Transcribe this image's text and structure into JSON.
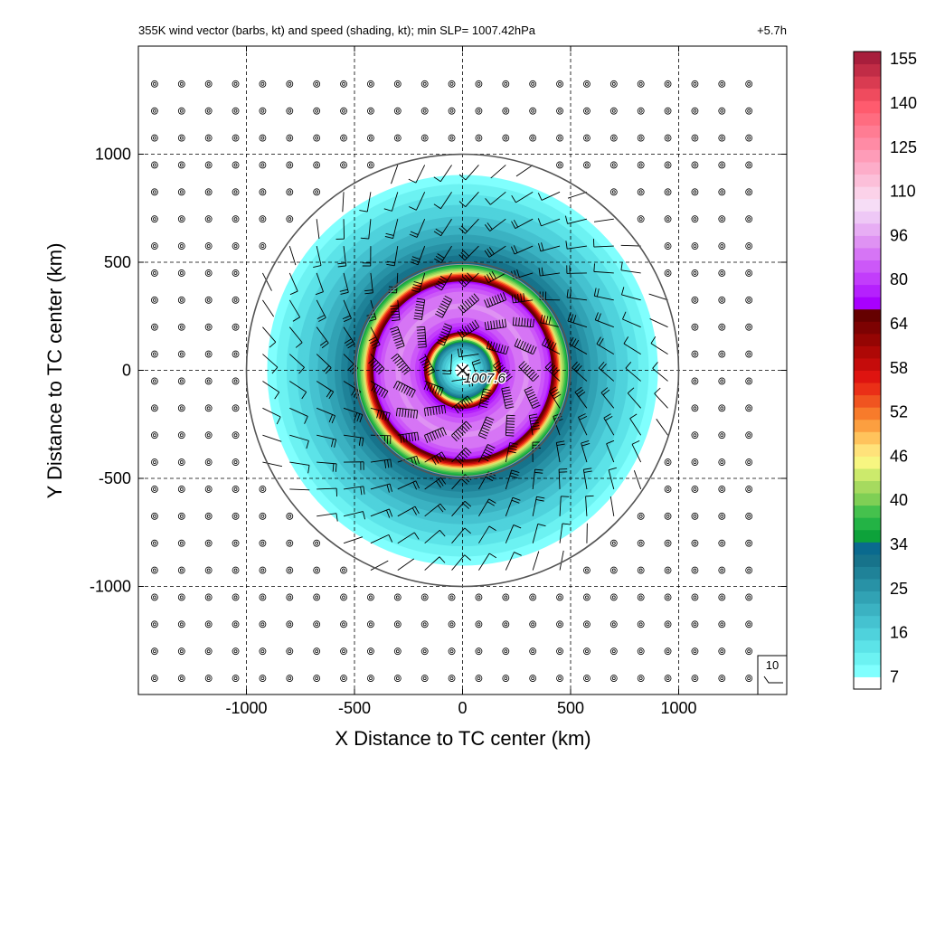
{
  "chart_data": {
    "type": "heatmap",
    "title": "355K wind vector (barbs, kt) and speed (shading, kt); min SLP= 1007.42hPa",
    "time_label": "+5.7h",
    "xlabel": "X Distance to TC center (km)",
    "ylabel": "Y Distance to TC center (km)",
    "xlim": [
      -1500,
      1500
    ],
    "ylim": [
      -1500,
      1500
    ],
    "xticks": [
      -1000,
      -500,
      0,
      500,
      1000
    ],
    "yticks": [
      -1000,
      -500,
      0,
      500,
      1000
    ],
    "xtick_labels": [
      "-1000",
      "-500",
      "0",
      "500",
      "1000"
    ],
    "ytick_labels": [
      "-1000",
      "-500",
      "0",
      "500",
      "1000"
    ],
    "grid": "dashed",
    "center_marker": "x",
    "center_label": "1007.6",
    "range_rings_km": [
      500,
      1000
    ],
    "barb_reference_label": "10",
    "colorbar": {
      "labels": [
        "7",
        "16",
        "25",
        "34",
        "40",
        "46",
        "52",
        "58",
        "64",
        "80",
        "96",
        "110",
        "125",
        "140",
        "155"
      ],
      "levels": [
        7,
        16,
        25,
        34,
        40,
        46,
        52,
        58,
        64,
        80,
        96,
        110,
        125,
        140,
        155
      ],
      "colors": [
        "#ffffff",
        "#80fffe",
        "#6cf2f2",
        "#5ce3e8",
        "#4fd2dc",
        "#45c2d0",
        "#3bb2c2",
        "#31a2b4",
        "#2892a6",
        "#1f8298",
        "#17738b",
        "#0a6a8e",
        "#0da23a",
        "#23b345",
        "#45c14d",
        "#7fcf55",
        "#a6da5f",
        "#ccea6c",
        "#f7f681",
        "#ffe27a",
        "#ffc35c",
        "#fc9f40",
        "#f77b2b",
        "#f05420",
        "#ea2f17",
        "#de1410",
        "#c50c0b",
        "#ae0806",
        "#950503",
        "#7d0202",
        "#650000",
        "#a800fe",
        "#b521fd",
        "#c23dfb",
        "#cc58f8",
        "#d675f5",
        "#df92f3",
        "#e7adf4",
        "#eec8f6",
        "#f6ddf6",
        "#fbd2e9",
        "#fcbfd9",
        "#fdadc9",
        "#fe9cb8",
        "#ff8ba5",
        "#ff7c93",
        "#ff6c80",
        "#ff5b6e",
        "#ef4b5e",
        "#d93b51",
        "#c12c46",
        "#a81e3c"
      ]
    },
    "profile": {
      "radius_km": [
        0,
        40,
        80,
        110,
        130,
        160,
        180,
        230,
        300,
        360,
        400,
        430,
        460,
        500,
        550,
        600,
        700,
        800,
        900,
        950
      ],
      "speed_kt": [
        3,
        10,
        18,
        25,
        32,
        52,
        70,
        85,
        92,
        88,
        80,
        62,
        45,
        34,
        30,
        26,
        20,
        15,
        10,
        6
      ]
    }
  }
}
